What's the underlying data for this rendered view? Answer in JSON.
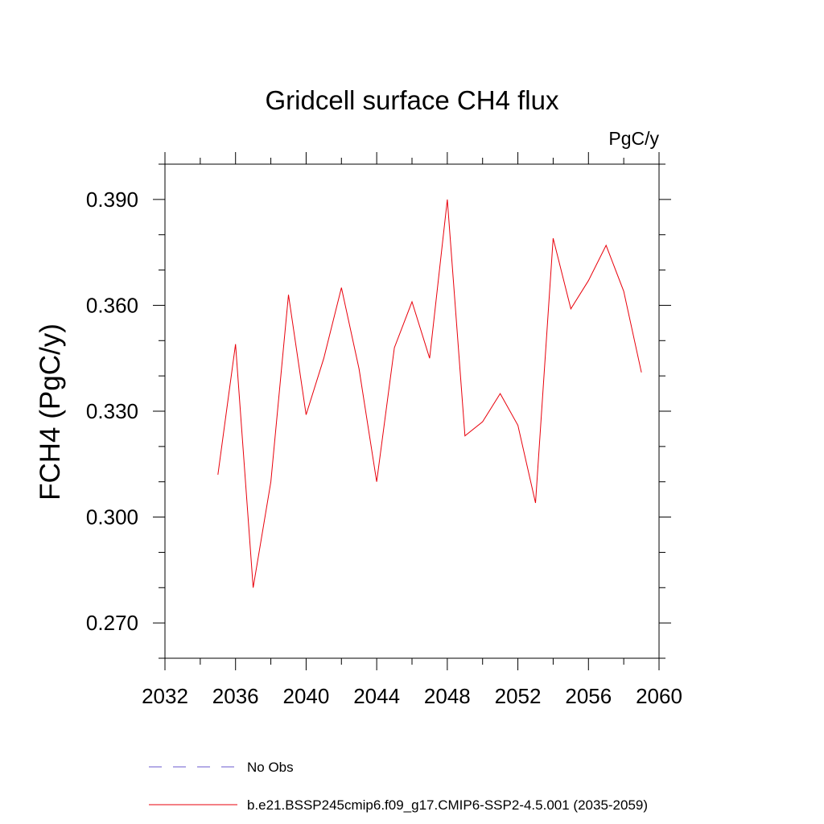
{
  "chart_data": {
    "type": "line",
    "title": "Gridcell surface CH4 flux",
    "units": "PgC/y",
    "ylabel": "FCH4  (PgC/y)",
    "xlabel": "",
    "xlim": [
      2032,
      2060
    ],
    "ylim": [
      0.26,
      0.4
    ],
    "x_ticks": [
      "2032",
      "2036",
      "2040",
      "2044",
      "2048",
      "2052",
      "2056",
      "2060"
    ],
    "y_ticks": [
      "0.270",
      "0.300",
      "0.330",
      "0.360",
      "0.390"
    ],
    "grid": false,
    "legend_position": "bottom",
    "series": [
      {
        "name": "No Obs",
        "color": "#6a5acd",
        "style": "dashed",
        "x": [],
        "values": []
      },
      {
        "name": "b.e21.BSSP245cmip6.f09_g17.CMIP6-SSP2-4.5.001 (2035-2059)",
        "color": "#e8000b",
        "style": "solid",
        "x": [
          2035,
          2036,
          2037,
          2038,
          2039,
          2040,
          2041,
          2042,
          2043,
          2044,
          2045,
          2046,
          2047,
          2048,
          2049,
          2050,
          2051,
          2052,
          2053,
          2054,
          2055,
          2056,
          2057,
          2058,
          2059
        ],
        "values": [
          0.312,
          0.349,
          0.28,
          0.31,
          0.363,
          0.329,
          0.345,
          0.365,
          0.342,
          0.31,
          0.348,
          0.361,
          0.345,
          0.39,
          0.323,
          0.327,
          0.335,
          0.326,
          0.304,
          0.379,
          0.359,
          0.367,
          0.377,
          0.364,
          0.341
        ]
      }
    ]
  }
}
